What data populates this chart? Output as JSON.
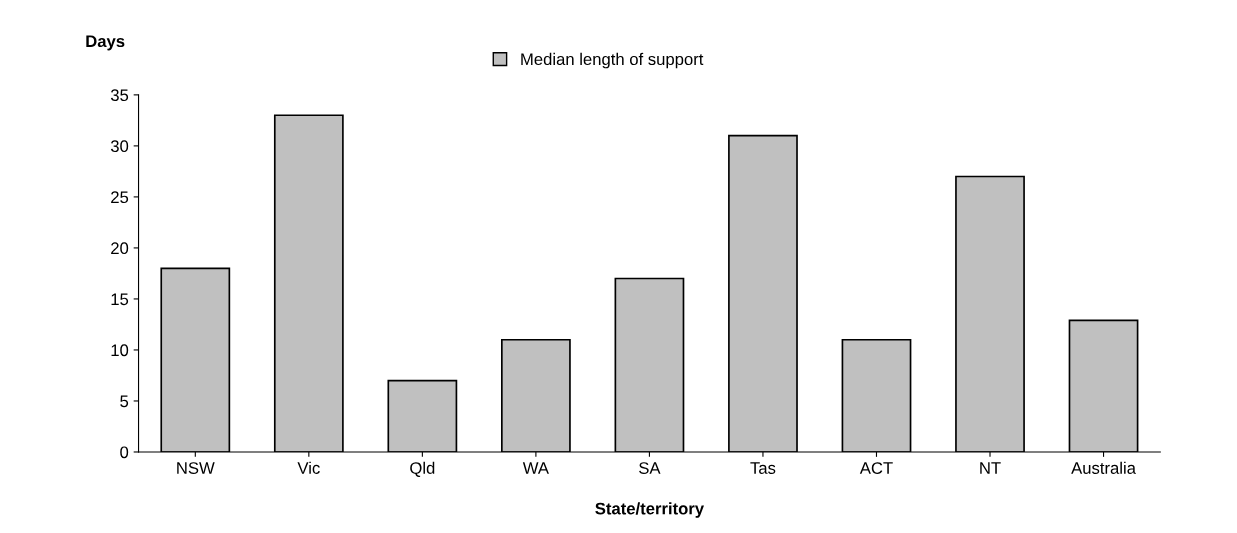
{
  "chart_data": {
    "type": "bar",
    "xlabel": "State/territory",
    "ylabel": "Days",
    "categories": [
      "NSW",
      "Vic",
      "Qld",
      "WA",
      "SA",
      "Tas",
      "ACT",
      "NT",
      "Australia"
    ],
    "series": [
      {
        "name": "Median length of support",
        "color": "#c0c0c0",
        "values": [
          18,
          33,
          7,
          11,
          17,
          31,
          11,
          27,
          12.9
        ]
      }
    ],
    "ylim": [
      0,
      35
    ],
    "yticks": [
      0,
      5,
      10,
      15,
      20,
      25,
      30,
      35
    ],
    "grid": false,
    "legend": "top"
  }
}
